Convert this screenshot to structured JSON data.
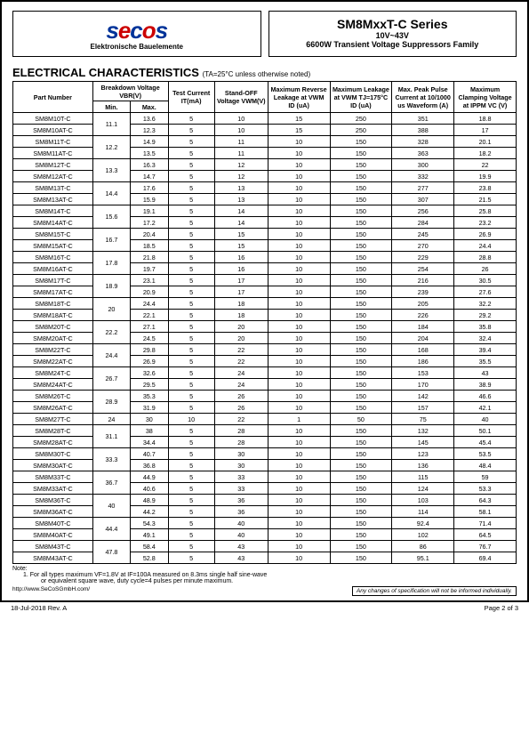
{
  "logo": {
    "brand_s": "s",
    "brand_e": "e",
    "brand_c": "c",
    "brand_o": "o",
    "brand_s2": "s",
    "sub": "Elektronische Bauelemente"
  },
  "title": {
    "main": "SM8MxxT-C Series",
    "sub": "10V~43V",
    "desc": "6600W Transient Voltage Suppressors Family"
  },
  "section": {
    "title": "ELECTRICAL CHARACTERISTICS",
    "cond": "(TA=25°C unless otherwise noted)"
  },
  "columns": {
    "pn": "Part Number",
    "bv": "Breakdown Voltage VBR(V)",
    "bv_min": "Min.",
    "bv_max": "Max.",
    "it": "Test Current IT(mA)",
    "vwm": "Stand-OFF Voltage VWM(V)",
    "irvwm": "Maximum Reverse Leakage at VWM ID (uA)",
    "ir175": "Maximum Leakage at VWM TJ=175°C ID (uA)",
    "ipp": "Max. Peak Pulse Current at 10/1000 us Waveform (A)",
    "vc": "Maximum Clamping Voltage at IPPM VC (V)"
  },
  "groups": [
    {
      "min": "11.1",
      "rows": [
        {
          "pn": "SM8M10T-C",
          "max": "13.6",
          "it": "5",
          "vwm": "10",
          "ir": "15",
          "ir175": "250",
          "ipp": "351",
          "vc": "18.8"
        },
        {
          "pn": "SM8M10AT-C",
          "max": "12.3",
          "it": "5",
          "vwm": "10",
          "ir": "15",
          "ir175": "250",
          "ipp": "388",
          "vc": "17"
        }
      ]
    },
    {
      "min": "12.2",
      "rows": [
        {
          "pn": "SM8M11T-C",
          "max": "14.9",
          "it": "5",
          "vwm": "11",
          "ir": "10",
          "ir175": "150",
          "ipp": "328",
          "vc": "20.1"
        },
        {
          "pn": "SM8M11AT-C",
          "max": "13.5",
          "it": "5",
          "vwm": "11",
          "ir": "10",
          "ir175": "150",
          "ipp": "363",
          "vc": "18.2"
        }
      ]
    },
    {
      "min": "13.3",
      "rows": [
        {
          "pn": "SM8M12T-C",
          "max": "16.3",
          "it": "5",
          "vwm": "12",
          "ir": "10",
          "ir175": "150",
          "ipp": "300",
          "vc": "22"
        },
        {
          "pn": "SM8M12AT-C",
          "max": "14.7",
          "it": "5",
          "vwm": "12",
          "ir": "10",
          "ir175": "150",
          "ipp": "332",
          "vc": "19.9"
        }
      ]
    },
    {
      "min": "14.4",
      "rows": [
        {
          "pn": "SM8M13T-C",
          "max": "17.6",
          "it": "5",
          "vwm": "13",
          "ir": "10",
          "ir175": "150",
          "ipp": "277",
          "vc": "23.8"
        },
        {
          "pn": "SM8M13AT-C",
          "max": "15.9",
          "it": "5",
          "vwm": "13",
          "ir": "10",
          "ir175": "150",
          "ipp": "307",
          "vc": "21.5"
        }
      ]
    },
    {
      "min": "15.6",
      "rows": [
        {
          "pn": "SM8M14T-C",
          "max": "19.1",
          "it": "5",
          "vwm": "14",
          "ir": "10",
          "ir175": "150",
          "ipp": "256",
          "vc": "25.8"
        },
        {
          "pn": "SM8M14AT-C",
          "max": "17.2",
          "it": "5",
          "vwm": "14",
          "ir": "10",
          "ir175": "150",
          "ipp": "284",
          "vc": "23.2"
        }
      ]
    },
    {
      "min": "16.7",
      "rows": [
        {
          "pn": "SM8M15T-C",
          "max": "20.4",
          "it": "5",
          "vwm": "15",
          "ir": "10",
          "ir175": "150",
          "ipp": "245",
          "vc": "26.9"
        },
        {
          "pn": "SM8M15AT-C",
          "max": "18.5",
          "it": "5",
          "vwm": "15",
          "ir": "10",
          "ir175": "150",
          "ipp": "270",
          "vc": "24.4"
        }
      ]
    },
    {
      "min": "17.8",
      "rows": [
        {
          "pn": "SM8M16T-C",
          "max": "21.8",
          "it": "5",
          "vwm": "16",
          "ir": "10",
          "ir175": "150",
          "ipp": "229",
          "vc": "28.8"
        },
        {
          "pn": "SM8M16AT-C",
          "max": "19.7",
          "it": "5",
          "vwm": "16",
          "ir": "10",
          "ir175": "150",
          "ipp": "254",
          "vc": "26"
        }
      ]
    },
    {
      "min": "18.9",
      "rows": [
        {
          "pn": "SM8M17T-C",
          "max": "23.1",
          "it": "5",
          "vwm": "17",
          "ir": "10",
          "ir175": "150",
          "ipp": "216",
          "vc": "30.5"
        },
        {
          "pn": "SM8M17AT-C",
          "max": "20.9",
          "it": "5",
          "vwm": "17",
          "ir": "10",
          "ir175": "150",
          "ipp": "239",
          "vc": "27.6"
        }
      ]
    },
    {
      "min": "20",
      "rows": [
        {
          "pn": "SM8M18T-C",
          "max": "24.4",
          "it": "5",
          "vwm": "18",
          "ir": "10",
          "ir175": "150",
          "ipp": "205",
          "vc": "32.2"
        },
        {
          "pn": "SM8M18AT-C",
          "max": "22.1",
          "it": "5",
          "vwm": "18",
          "ir": "10",
          "ir175": "150",
          "ipp": "226",
          "vc": "29.2"
        }
      ]
    },
    {
      "min": "22.2",
      "rows": [
        {
          "pn": "SM8M20T-C",
          "max": "27.1",
          "it": "5",
          "vwm": "20",
          "ir": "10",
          "ir175": "150",
          "ipp": "184",
          "vc": "35.8"
        },
        {
          "pn": "SM8M20AT-C",
          "max": "24.5",
          "it": "5",
          "vwm": "20",
          "ir": "10",
          "ir175": "150",
          "ipp": "204",
          "vc": "32.4"
        }
      ]
    },
    {
      "min": "24.4",
      "rows": [
        {
          "pn": "SM8M22T-C",
          "max": "29.8",
          "it": "5",
          "vwm": "22",
          "ir": "10",
          "ir175": "150",
          "ipp": "168",
          "vc": "39.4"
        },
        {
          "pn": "SM8M22AT-C",
          "max": "26.9",
          "it": "5",
          "vwm": "22",
          "ir": "10",
          "ir175": "150",
          "ipp": "186",
          "vc": "35.5"
        }
      ]
    },
    {
      "min": "26.7",
      "rows": [
        {
          "pn": "SM8M24T-C",
          "max": "32.6",
          "it": "5",
          "vwm": "24",
          "ir": "10",
          "ir175": "150",
          "ipp": "153",
          "vc": "43"
        },
        {
          "pn": "SM8M24AT-C",
          "max": "29.5",
          "it": "5",
          "vwm": "24",
          "ir": "10",
          "ir175": "150",
          "ipp": "170",
          "vc": "38.9"
        }
      ]
    },
    {
      "min": "28.9",
      "rows": [
        {
          "pn": "SM8M26T-C",
          "max": "35.3",
          "it": "5",
          "vwm": "26",
          "ir": "10",
          "ir175": "150",
          "ipp": "142",
          "vc": "46.6"
        },
        {
          "pn": "SM8M26AT-C",
          "max": "31.9",
          "it": "5",
          "vwm": "26",
          "ir": "10",
          "ir175": "150",
          "ipp": "157",
          "vc": "42.1"
        }
      ]
    },
    {
      "min": "24",
      "singleMin": true,
      "rows": [
        {
          "pn": "SM8M27T-C",
          "max": "30",
          "it": "10",
          "vwm": "22",
          "ir": "1",
          "ir175": "50",
          "ipp": "75",
          "vc": "40"
        }
      ]
    },
    {
      "min": "31.1",
      "rows": [
        {
          "pn": "SM8M28T-C",
          "max": "38",
          "it": "5",
          "vwm": "28",
          "ir": "10",
          "ir175": "150",
          "ipp": "132",
          "vc": "50.1"
        },
        {
          "pn": "SM8M28AT-C",
          "max": "34.4",
          "it": "5",
          "vwm": "28",
          "ir": "10",
          "ir175": "150",
          "ipp": "145",
          "vc": "45.4"
        }
      ]
    },
    {
      "min": "33.3",
      "rows": [
        {
          "pn": "SM8M30T-C",
          "max": "40.7",
          "it": "5",
          "vwm": "30",
          "ir": "10",
          "ir175": "150",
          "ipp": "123",
          "vc": "53.5"
        },
        {
          "pn": "SM8M30AT-C",
          "max": "36.8",
          "it": "5",
          "vwm": "30",
          "ir": "10",
          "ir175": "150",
          "ipp": "136",
          "vc": "48.4"
        }
      ]
    },
    {
      "min": "36.7",
      "rows": [
        {
          "pn": "SM8M33T-C",
          "max": "44.9",
          "it": "5",
          "vwm": "33",
          "ir": "10",
          "ir175": "150",
          "ipp": "115",
          "vc": "59"
        },
        {
          "pn": "SM8M33AT-C",
          "max": "40.6",
          "it": "5",
          "vwm": "33",
          "ir": "10",
          "ir175": "150",
          "ipp": "124",
          "vc": "53.3"
        }
      ]
    },
    {
      "min": "40",
      "rows": [
        {
          "pn": "SM8M36T-C",
          "max": "48.9",
          "it": "5",
          "vwm": "36",
          "ir": "10",
          "ir175": "150",
          "ipp": "103",
          "vc": "64.3"
        },
        {
          "pn": "SM8M36AT-C",
          "max": "44.2",
          "it": "5",
          "vwm": "36",
          "ir": "10",
          "ir175": "150",
          "ipp": "114",
          "vc": "58.1"
        }
      ]
    },
    {
      "min": "44.4",
      "rows": [
        {
          "pn": "SM8M40T-C",
          "max": "54.3",
          "it": "5",
          "vwm": "40",
          "ir": "10",
          "ir175": "150",
          "ipp": "92.4",
          "vc": "71.4"
        },
        {
          "pn": "SM8M40AT-C",
          "max": "49.1",
          "it": "5",
          "vwm": "40",
          "ir": "10",
          "ir175": "150",
          "ipp": "102",
          "vc": "64.5"
        }
      ]
    },
    {
      "min": "47.8",
      "rows": [
        {
          "pn": "SM8M43T-C",
          "max": "58.4",
          "it": "5",
          "vwm": "43",
          "ir": "10",
          "ir175": "150",
          "ipp": "86",
          "vc": "76.7"
        },
        {
          "pn": "SM8M43AT-C",
          "max": "52.8",
          "it": "5",
          "vwm": "43",
          "ir": "10",
          "ir175": "150",
          "ipp": "95.1",
          "vc": "69.4"
        }
      ]
    }
  ],
  "note": {
    "title": "Note:",
    "text1": "1.    For all types maximum VF=1.8V at IF=100A measured on 8.3ms single half sine-wave",
    "text2": "or equivalent square wave, duty cycle=4 pulses per minute maximum."
  },
  "footer": {
    "url": "http://www.SeCoSGmbH.com/",
    "disclaim": "Any changes of specification will not be informed individually.",
    "rev": "18-Jul-2018 Rev. A",
    "page": "Page 2 of 3"
  }
}
